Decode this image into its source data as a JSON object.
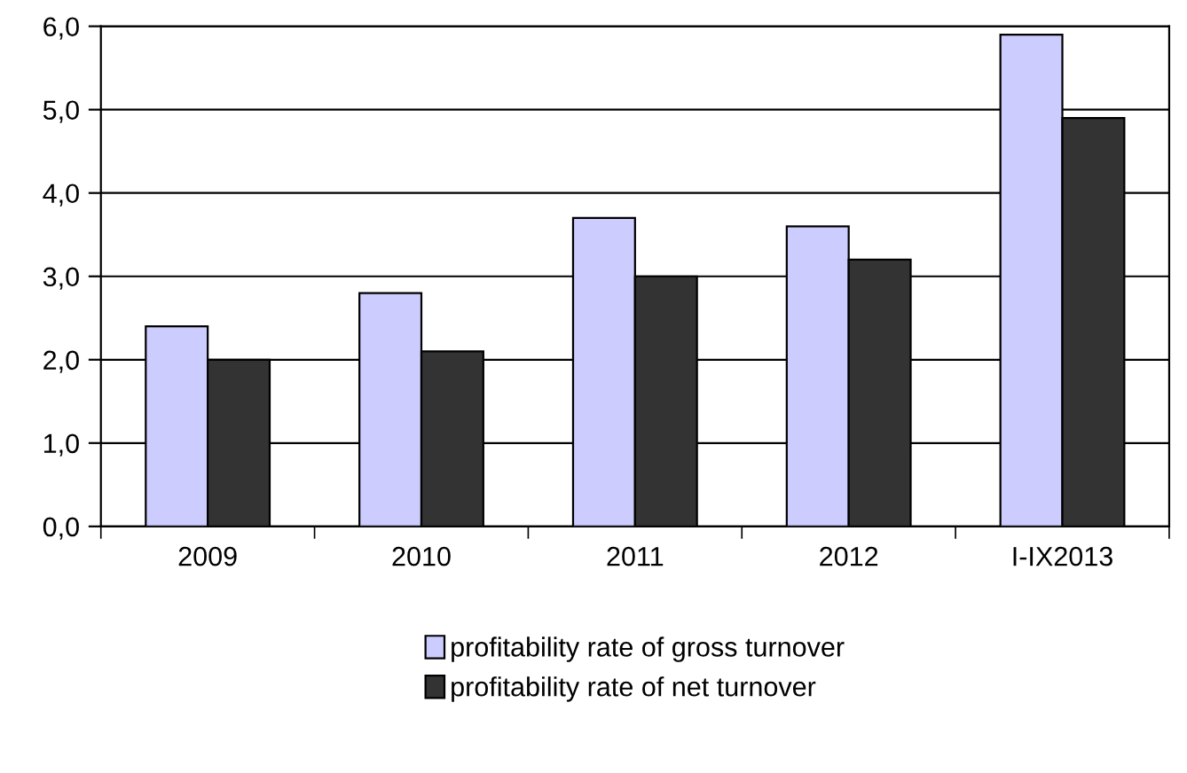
{
  "chart_data": {
    "type": "bar",
    "categories": [
      "2009",
      "2010",
      "2011",
      "2012",
      "I-IX2013"
    ],
    "series": [
      {
        "name": "profitability rate of gross turnover",
        "color": "#ccccff",
        "values": [
          2.4,
          2.8,
          3.7,
          3.6,
          5.9
        ]
      },
      {
        "name": "profitability rate of net turnover",
        "color": "#333333",
        "values": [
          2.0,
          2.1,
          3.0,
          3.2,
          4.9
        ]
      }
    ],
    "ylim": [
      0,
      6
    ],
    "yticks": [
      {
        "value": 0,
        "label": "0,0"
      },
      {
        "value": 1,
        "label": "1,0"
      },
      {
        "value": 2,
        "label": "2,0"
      },
      {
        "value": 3,
        "label": "3,0"
      },
      {
        "value": 4,
        "label": "4,0"
      },
      {
        "value": 5,
        "label": "5,0"
      },
      {
        "value": 6,
        "label": "6,0"
      }
    ],
    "grid": "y",
    "legend": "bottom"
  }
}
